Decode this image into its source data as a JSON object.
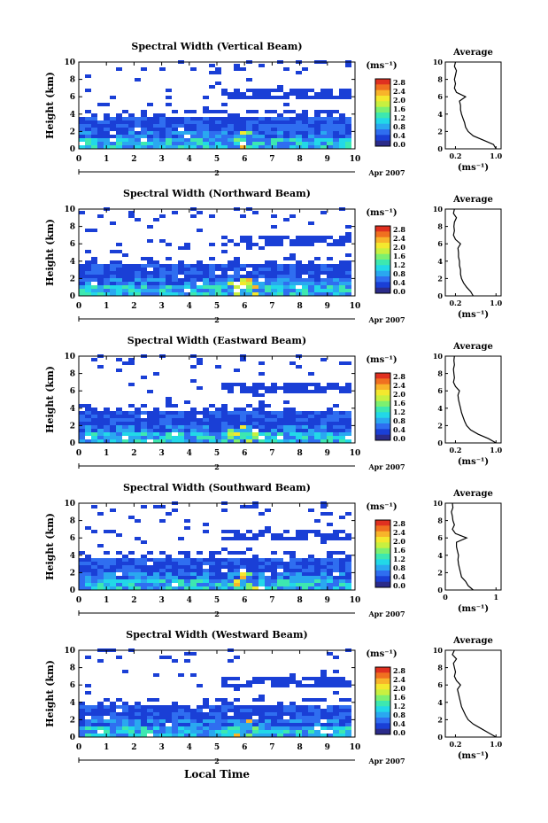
{
  "figure": {
    "xlabel": "Local Time",
    "date_label": "Apr 2007",
    "date_tick_label": "2",
    "colorbar_unit": "(ms⁻¹)",
    "colorbar_ticks": [
      "2.8",
      "2.4",
      "2.0",
      "1.6",
      "1.2",
      "0.8",
      "0.4",
      "0.0"
    ],
    "colorbar_colors": [
      "#2b2b8a",
      "#1a3fd6",
      "#2f6ef0",
      "#2aa8f0",
      "#22d8e8",
      "#3de8b0",
      "#7cf070",
      "#c8f040",
      "#f4e82e",
      "#f8b42a",
      "#f07020",
      "#e03020"
    ],
    "avg_title": "Average",
    "avg_xlabel": "(ms⁻¹)",
    "ylabel": "Height (km)"
  },
  "chart_data": [
    {
      "type": "heatmap",
      "title": "Spectral Width (Vertical Beam)",
      "xlabel": "Local Time",
      "ylabel": "Height (km)",
      "xlim": [
        0,
        10
      ],
      "ylim": [
        0,
        10
      ],
      "x_ticks": [
        "0",
        "1",
        "2",
        "3",
        "4",
        "5",
        "6",
        "7",
        "8",
        "9",
        "10"
      ],
      "y_ticks": [
        "0",
        "2",
        "4",
        "6",
        "8",
        "10"
      ],
      "colorbar": {
        "label": "(ms⁻¹)",
        "range": [
          0,
          2.8
        ]
      },
      "average_profile": {
        "title": "Average",
        "xlabel": "(ms⁻¹)",
        "xlim": [
          0,
          1.1
        ],
        "x_ticks": [
          "0.2",
          "1.0"
        ],
        "height": [
          0,
          0.5,
          1,
          1.5,
          2,
          2.5,
          3,
          3.5,
          4,
          4.5,
          5,
          5.5,
          6,
          6.5,
          7,
          7.5,
          8,
          8.5,
          9,
          9.5,
          10
        ],
        "width": [
          1.0,
          0.95,
          0.75,
          0.55,
          0.45,
          0.4,
          0.38,
          0.35,
          0.32,
          0.3,
          0.3,
          0.28,
          0.4,
          0.22,
          0.18,
          0.2,
          0.18,
          0.2,
          0.22,
          0.18,
          0.2
        ]
      }
    },
    {
      "type": "heatmap",
      "title": "Spectral Width (Northward Beam)",
      "xlabel": "Local Time",
      "ylabel": "Height (km)",
      "xlim": [
        0,
        10
      ],
      "ylim": [
        0,
        10
      ],
      "x_ticks": [
        "0",
        "1",
        "2",
        "3",
        "4",
        "5",
        "6",
        "7",
        "8",
        "9",
        "10"
      ],
      "y_ticks": [
        "0",
        "2",
        "4",
        "6",
        "8",
        "10"
      ],
      "colorbar": {
        "label": "(ms⁻¹)",
        "range": [
          0,
          2.8
        ]
      },
      "average_profile": {
        "title": "Average",
        "xlabel": "(ms⁻¹)",
        "xlim": [
          0,
          1.1
        ],
        "x_ticks": [
          "0.2",
          "1.0"
        ],
        "height": [
          0,
          0.5,
          1,
          1.5,
          2,
          2.5,
          3,
          3.5,
          4,
          4.5,
          5,
          5.5,
          6,
          6.5,
          7,
          7.5,
          8,
          8.5,
          9,
          9.5,
          10
        ],
        "width": [
          0.55,
          0.5,
          0.42,
          0.36,
          0.32,
          0.3,
          0.3,
          0.28,
          0.28,
          0.26,
          0.26,
          0.25,
          0.3,
          0.2,
          0.16,
          0.18,
          0.17,
          0.18,
          0.22,
          0.16,
          0.18
        ]
      }
    },
    {
      "type": "heatmap",
      "title": "Spectral Width (Eastward Beam)",
      "xlabel": "Local Time",
      "ylabel": "Height (km)",
      "xlim": [
        0,
        10
      ],
      "ylim": [
        0,
        10
      ],
      "x_ticks": [
        "0",
        "1",
        "2",
        "3",
        "4",
        "5",
        "6",
        "7",
        "8",
        "9",
        "10"
      ],
      "y_ticks": [
        "0",
        "2",
        "4",
        "6",
        "8",
        "10"
      ],
      "colorbar": {
        "label": "(ms⁻¹)",
        "range": [
          0,
          2.8
        ]
      },
      "average_profile": {
        "title": "Average",
        "xlabel": "(ms⁻¹)",
        "xlim": [
          0,
          1.1
        ],
        "x_ticks": [
          "0.2",
          "1.0"
        ],
        "height": [
          0,
          0.5,
          1,
          1.5,
          2,
          2.5,
          3,
          3.5,
          4,
          4.5,
          5,
          5.5,
          6,
          6.5,
          7,
          7.5,
          8,
          8.5,
          9,
          9.5,
          10
        ],
        "width": [
          1.0,
          0.85,
          0.65,
          0.5,
          0.42,
          0.38,
          0.35,
          0.32,
          0.3,
          0.28,
          0.26,
          0.25,
          0.28,
          0.2,
          0.16,
          0.18,
          0.17,
          0.16,
          0.18,
          0.17,
          0.18
        ]
      }
    },
    {
      "type": "heatmap",
      "title": "Spectral Width (Southward Beam)",
      "xlabel": "Local Time",
      "ylabel": "Height (km)",
      "xlim": [
        0,
        10
      ],
      "ylim": [
        0,
        10
      ],
      "x_ticks": [
        "0",
        "1",
        "2",
        "3",
        "4",
        "5",
        "6",
        "7",
        "8",
        "9",
        "10"
      ],
      "y_ticks": [
        "0",
        "2",
        "4",
        "6",
        "8",
        "10"
      ],
      "colorbar": {
        "label": "(ms⁻¹)",
        "range": [
          0,
          2.8
        ]
      },
      "average_profile": {
        "title": "Average",
        "xlabel": "(ms⁻¹)",
        "xlim": [
          0,
          1.1
        ],
        "x_ticks": [
          "0",
          "1"
        ],
        "height": [
          0,
          0.5,
          1,
          1.5,
          2,
          2.5,
          3,
          3.5,
          4,
          4.5,
          5,
          5.5,
          6,
          6.5,
          7,
          7.5,
          8,
          8.5,
          9,
          9.5,
          10
        ],
        "width": [
          0.55,
          0.45,
          0.4,
          0.32,
          0.3,
          0.28,
          0.26,
          0.25,
          0.26,
          0.24,
          0.22,
          0.22,
          0.42,
          0.2,
          0.14,
          0.18,
          0.15,
          0.14,
          0.12,
          0.15,
          0.14
        ]
      }
    },
    {
      "type": "heatmap",
      "title": "Spectral Width (Westward Beam)",
      "xlabel": "Local Time",
      "ylabel": "Height (km)",
      "xlim": [
        0,
        10
      ],
      "ylim": [
        0,
        10
      ],
      "x_ticks": [
        "0",
        "1",
        "2",
        "3",
        "4",
        "5",
        "6",
        "7",
        "8",
        "9",
        "10"
      ],
      "y_ticks": [
        "0",
        "2",
        "4",
        "6",
        "8",
        "10"
      ],
      "colorbar": {
        "label": "(ms⁻¹)",
        "range": [
          0,
          2.8
        ]
      },
      "average_profile": {
        "title": "Average",
        "xlabel": "(ms⁻¹)",
        "xlim": [
          0,
          1.1
        ],
        "x_ticks": [
          "0.2",
          "1.0"
        ],
        "height": [
          0,
          0.5,
          1,
          1.5,
          2,
          2.5,
          3,
          3.5,
          4,
          4.5,
          5,
          5.5,
          6,
          6.5,
          7,
          7.5,
          8,
          8.5,
          9,
          9.5,
          10
        ],
        "width": [
          1.0,
          0.85,
          0.7,
          0.55,
          0.45,
          0.4,
          0.36,
          0.32,
          0.3,
          0.28,
          0.26,
          0.24,
          0.3,
          0.22,
          0.18,
          0.2,
          0.18,
          0.16,
          0.22,
          0.14,
          0.18
        ]
      }
    }
  ]
}
